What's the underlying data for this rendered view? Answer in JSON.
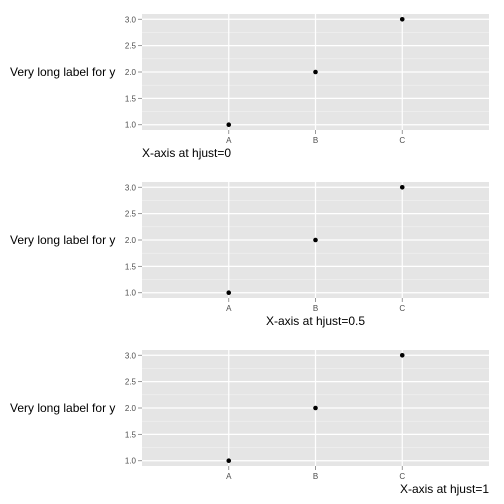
{
  "colors": {
    "panel_background": "#e5e5e5",
    "grid_major": "#ffffff",
    "grid_minor": "#f2f2f2",
    "tick_text": "#4d4d4d",
    "tick_mark": "#7f7f7f",
    "point": "#000000",
    "title_text": "#000000"
  },
  "chart_data": [
    {
      "type": "scatter",
      "categories": [
        "A",
        "B",
        "C"
      ],
      "x": [
        "A",
        "B",
        "C"
      ],
      "y": [
        1.0,
        2.0,
        3.0
      ],
      "ylim": [
        0.9,
        3.1
      ],
      "yticks": [
        "1.0",
        "1.5",
        "2.0",
        "2.5",
        "3.0"
      ],
      "xlabel": "X-axis at hjust=0",
      "xlabel_hjust": 0,
      "ylabel": "Very long label for y",
      "grid": true
    },
    {
      "type": "scatter",
      "categories": [
        "A",
        "B",
        "C"
      ],
      "x": [
        "A",
        "B",
        "C"
      ],
      "y": [
        1.0,
        2.0,
        3.0
      ],
      "ylim": [
        0.9,
        3.1
      ],
      "yticks": [
        "1.0",
        "1.5",
        "2.0",
        "2.5",
        "3.0"
      ],
      "xlabel": "X-axis at hjust=0.5",
      "xlabel_hjust": 0.5,
      "ylabel": "Very long label for y",
      "grid": true
    },
    {
      "type": "scatter",
      "categories": [
        "A",
        "B",
        "C"
      ],
      "x": [
        "A",
        "B",
        "C"
      ],
      "y": [
        1.0,
        2.0,
        3.0
      ],
      "ylim": [
        0.9,
        3.1
      ],
      "yticks": [
        "1.0",
        "1.5",
        "2.0",
        "2.5",
        "3.0"
      ],
      "xlabel": "X-axis at hjust=1",
      "xlabel_hjust": 1,
      "ylabel": "Very long label for y",
      "grid": true
    }
  ]
}
